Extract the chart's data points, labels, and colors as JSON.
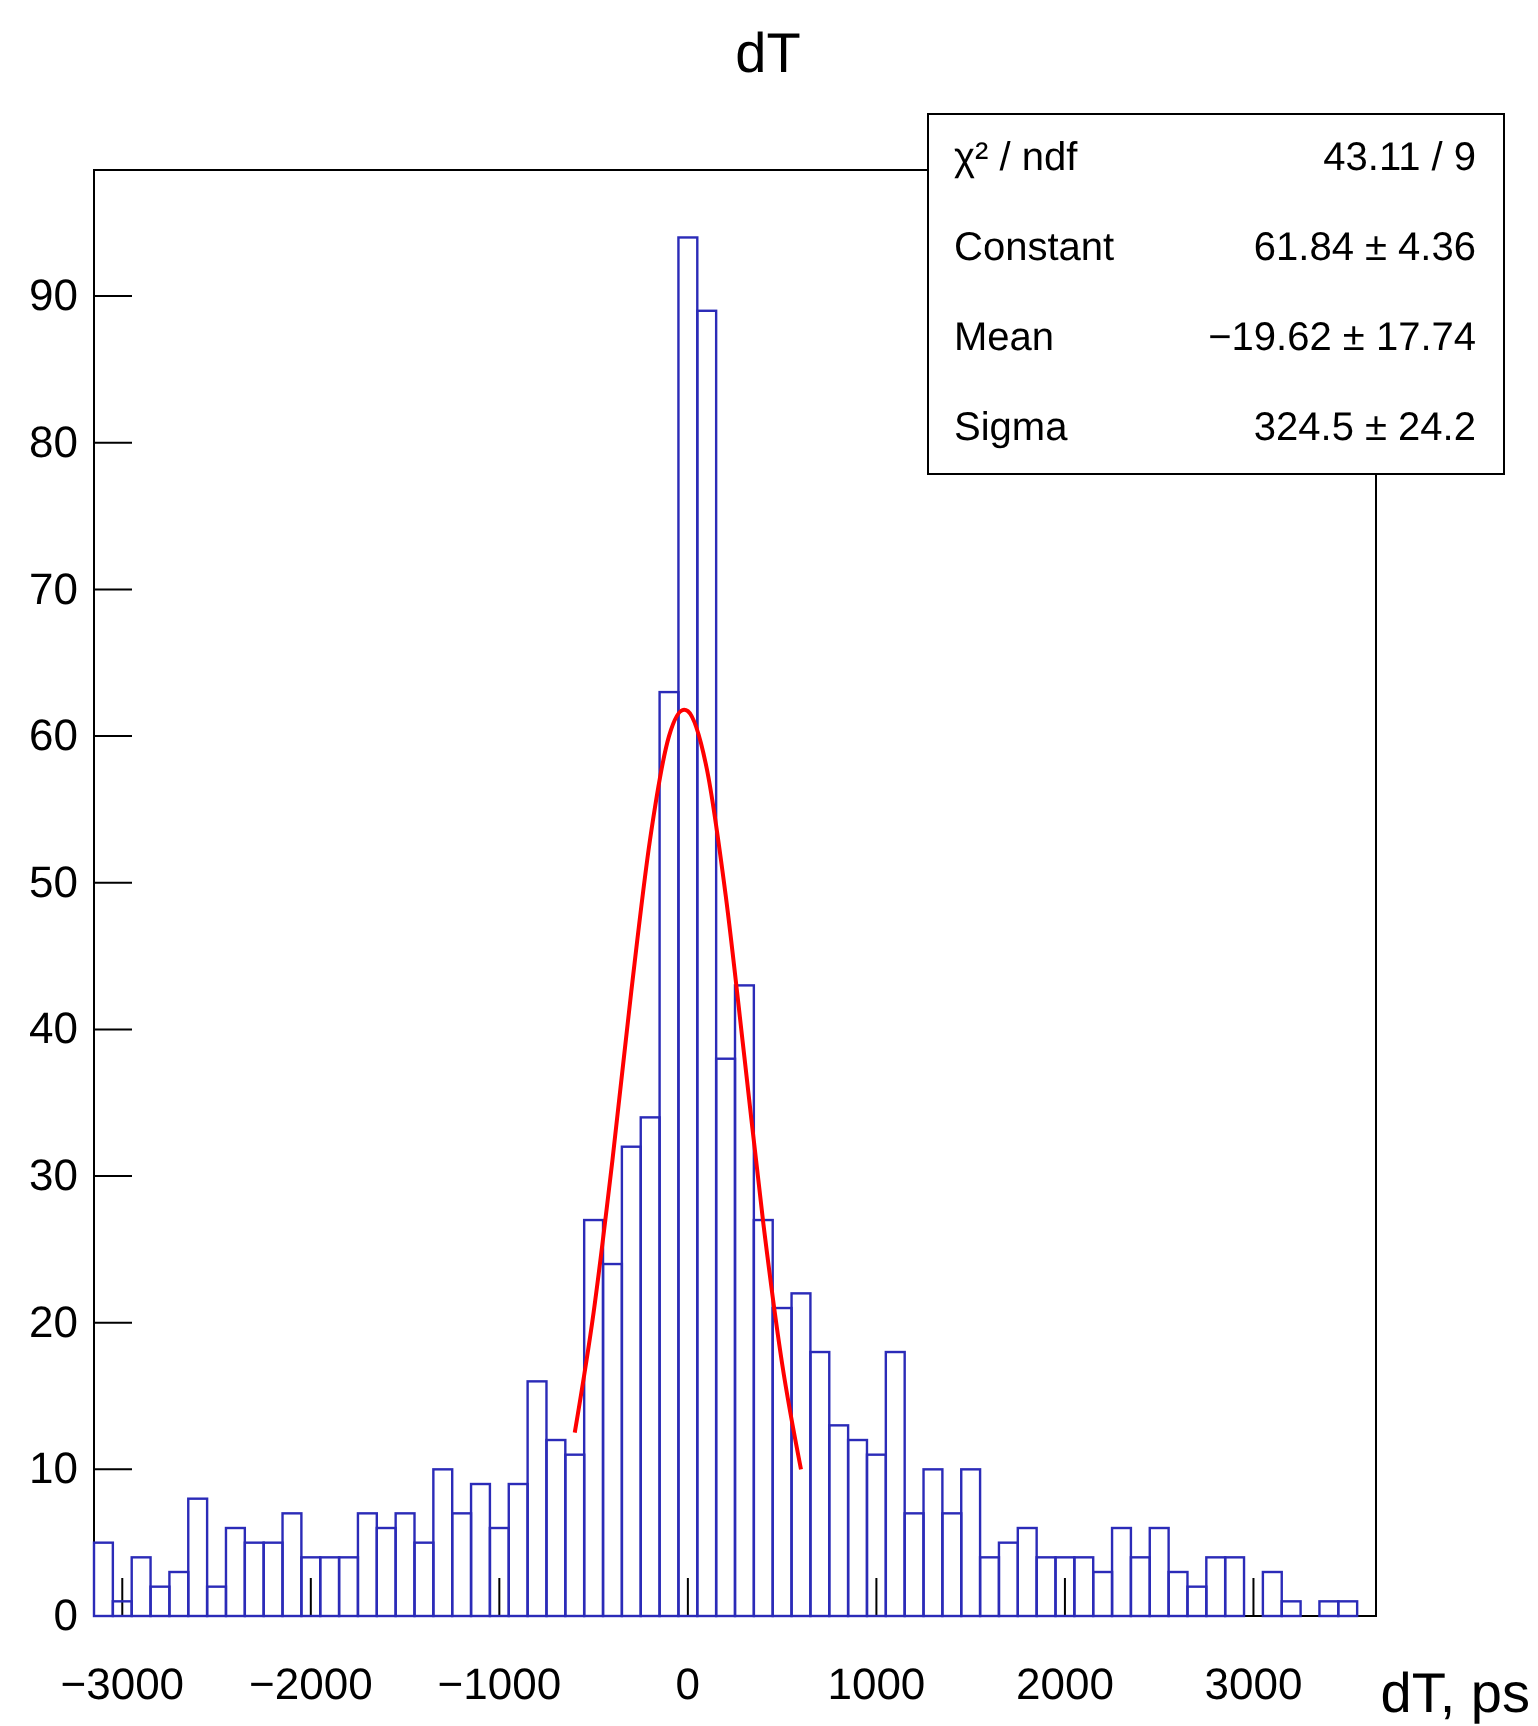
{
  "chart_data": {
    "type": "histogram",
    "title": "dT",
    "xlabel": "dT, ps",
    "bins": [
      -3150,
      -3050,
      -2950,
      -2850,
      -2750,
      -2650,
      -2550,
      -2450,
      -2350,
      -2250,
      -2150,
      -2050,
      -1950,
      -1850,
      -1750,
      -1650,
      -1550,
      -1450,
      -1350,
      -1250,
      -1150,
      -1050,
      -950,
      -850,
      -750,
      -650,
      -550,
      -450,
      -350,
      -250,
      -150,
      -50,
      50,
      150,
      250,
      350,
      450,
      550,
      650,
      750,
      850,
      950,
      1050,
      1150,
      1250,
      1350,
      1450,
      1550,
      1650,
      1750,
      1850,
      1950,
      2050,
      2150,
      2250,
      2350,
      2450,
      2550,
      2650,
      2750,
      2850,
      2950,
      3050,
      3150,
      3250,
      3350,
      3450,
      3550,
      3650
    ],
    "series": [
      {
        "color": "#2b2bb8",
        "values": [
          5,
          1,
          4,
          2,
          3,
          8,
          2,
          6,
          5,
          5,
          7,
          4,
          4,
          4,
          7,
          6,
          7,
          5,
          10,
          7,
          9,
          6,
          9,
          16,
          12,
          11,
          27,
          24,
          32,
          34,
          63,
          94,
          89,
          38,
          43,
          27,
          21,
          22,
          18,
          13,
          12,
          11,
          18,
          7,
          10,
          7,
          10,
          4,
          5,
          6,
          4,
          4,
          4,
          3,
          6,
          4,
          6,
          3,
          2,
          4,
          4,
          0,
          3,
          1,
          0,
          1,
          1,
          0
        ]
      },
      {
        "type": "line",
        "color": "#ff0000",
        "x": [
          -600,
          -500,
          -400,
          -300,
          -200,
          -100,
          -20,
          0,
          100,
          200,
          300,
          400,
          500,
          600
        ],
        "values": [
          12.5,
          20.7,
          31.1,
          42.6,
          53,
          60,
          61.8,
          61.7,
          57.8,
          49.2,
          38.1,
          26.8,
          17.2,
          10
        ]
      }
    ],
    "xlim": [
      -3150,
      3650
    ],
    "xticks": [
      {
        "value": -3000,
        "label": "−3000"
      },
      {
        "value": -2000,
        "label": "−2000"
      },
      {
        "value": -1000,
        "label": "−1000"
      },
      0,
      1000,
      2000,
      3000
    ],
    "ylim": [
      0,
      98.6
    ],
    "yticks": [
      0,
      10,
      20,
      30,
      40,
      50,
      60,
      70,
      80,
      90
    ],
    "annotations": [
      "χ² / ndf",
      "43.11 / 9",
      "Constant",
      "61.84 ± 4.36",
      "Mean",
      "−19.62 ± 17.74",
      "Sigma",
      "324.5 ± 24.2"
    ]
  }
}
